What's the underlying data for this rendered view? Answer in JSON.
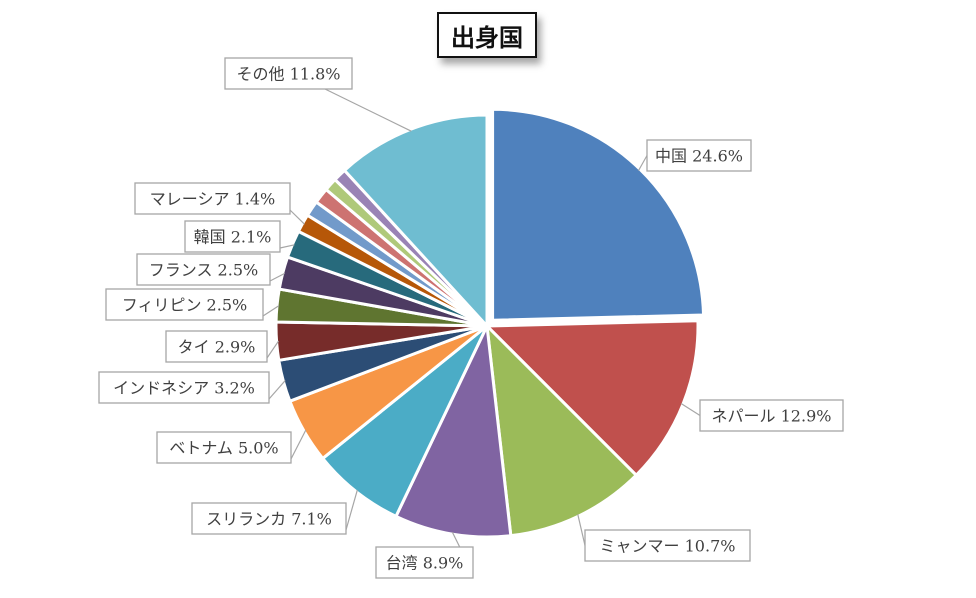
{
  "chart_data": {
    "type": "pie",
    "title": "出身国",
    "slices": [
      {
        "label": "中国",
        "value": 24.6,
        "text": "24.6%",
        "color": "#4F81BD"
      },
      {
        "label": "ネパール",
        "value": 12.9,
        "text": "12.9%",
        "color": "#C0504D"
      },
      {
        "label": "ミャンマー",
        "value": 10.7,
        "text": "10.7%",
        "color": "#9BBB59"
      },
      {
        "label": "台湾",
        "value": 8.9,
        "text": "8.9%",
        "color": "#8064A2"
      },
      {
        "label": "スリランカ",
        "value": 7.1,
        "text": "7.1%",
        "color": "#4BACC6"
      },
      {
        "label": "ベトナム",
        "value": 5.0,
        "text": "5.0%",
        "color": "#F79646"
      },
      {
        "label": "インドネシア",
        "value": 3.2,
        "text": "3.2%",
        "color": "#2C4D75"
      },
      {
        "label": "タイ",
        "value": 2.9,
        "text": "2.9%",
        "color": "#772C2A"
      },
      {
        "label": "フィリピン",
        "value": 2.5,
        "text": "2.5%",
        "color": "#5F7530"
      },
      {
        "label": "フランス",
        "value": 2.5,
        "text": "2.5%",
        "color": "#4D3B62"
      },
      {
        "label": "韓国",
        "value": 2.1,
        "text": "2.1%",
        "color": "#276A7C"
      },
      {
        "label": "マレーシア",
        "value": 1.4,
        "text": "1.4%",
        "color": "#B65708"
      },
      {
        "label": "",
        "value": 1.2,
        "text": "",
        "color": "#729ACA"
      },
      {
        "label": "",
        "value": 1.2,
        "text": "",
        "color": "#CD7371"
      },
      {
        "label": "",
        "value": 1.0,
        "text": "",
        "color": "#AFC97A"
      },
      {
        "label": "",
        "value": 1.0,
        "text": "",
        "color": "#9983B5"
      },
      {
        "label": "その他",
        "value": 11.8,
        "text": "11.8%",
        "color": "#6FBDD1"
      }
    ],
    "legend": "none",
    "data_labels": "callouts"
  }
}
